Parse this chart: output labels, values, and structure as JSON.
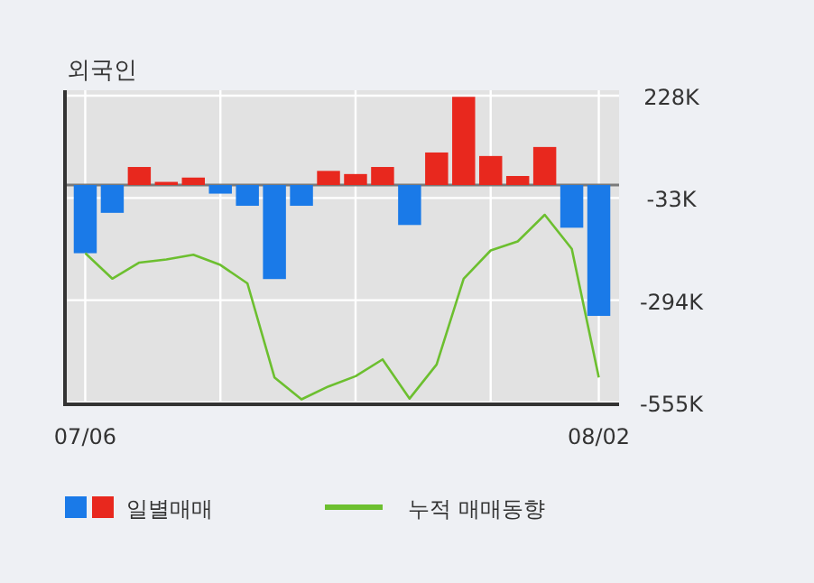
{
  "chart_data": {
    "type": "bar",
    "title": "외국인",
    "categories": [
      "07/06",
      null,
      null,
      null,
      null,
      null,
      null,
      null,
      null,
      null,
      null,
      null,
      null,
      null,
      null,
      null,
      null,
      null,
      null,
      "08/02"
    ],
    "series": [
      {
        "name": "일별매매",
        "colors": [
          "#1a7ae8",
          "#1a7ae8",
          "#e8281e",
          "#e8281e",
          "#e8281e",
          "#1a7ae8",
          "#1a7ae8",
          "#1a7ae8",
          "#1a7ae8",
          "#e8281e",
          "#e8281e",
          "#e8281e",
          "#1a7ae8",
          "#e8281e",
          "#e8281e",
          "#e8281e",
          "#e8281e",
          "#e8281e",
          "#1a7ae8",
          "#1a7ae8"
        ],
        "values": [
          -174,
          -71,
          46,
          8,
          19,
          -22,
          -53,
          -240,
          -53,
          36,
          28,
          46,
          -102,
          83,
          225,
          74,
          23,
          97,
          -109,
          -334
        ]
      },
      {
        "name": "누적 매매동향",
        "type": "line",
        "color": "#6cbf2f",
        "values": [
          -174,
          -239,
          -198,
          -190,
          -178,
          -204,
          -251,
          -491,
          -547,
          -514,
          -488,
          -445,
          -545,
          -458,
          -239,
          -167,
          -144,
          -76,
          -163,
          -491
        ]
      }
    ],
    "ylim": [
      -555,
      228
    ],
    "yticks": [
      {
        "value": 228,
        "label": "228K"
      },
      {
        "value": -33,
        "label": "-33K"
      },
      {
        "value": -294,
        "label": "-294K"
      },
      {
        "value": -555,
        "label": "-555K"
      }
    ],
    "grid": true,
    "legend": "bottom"
  }
}
